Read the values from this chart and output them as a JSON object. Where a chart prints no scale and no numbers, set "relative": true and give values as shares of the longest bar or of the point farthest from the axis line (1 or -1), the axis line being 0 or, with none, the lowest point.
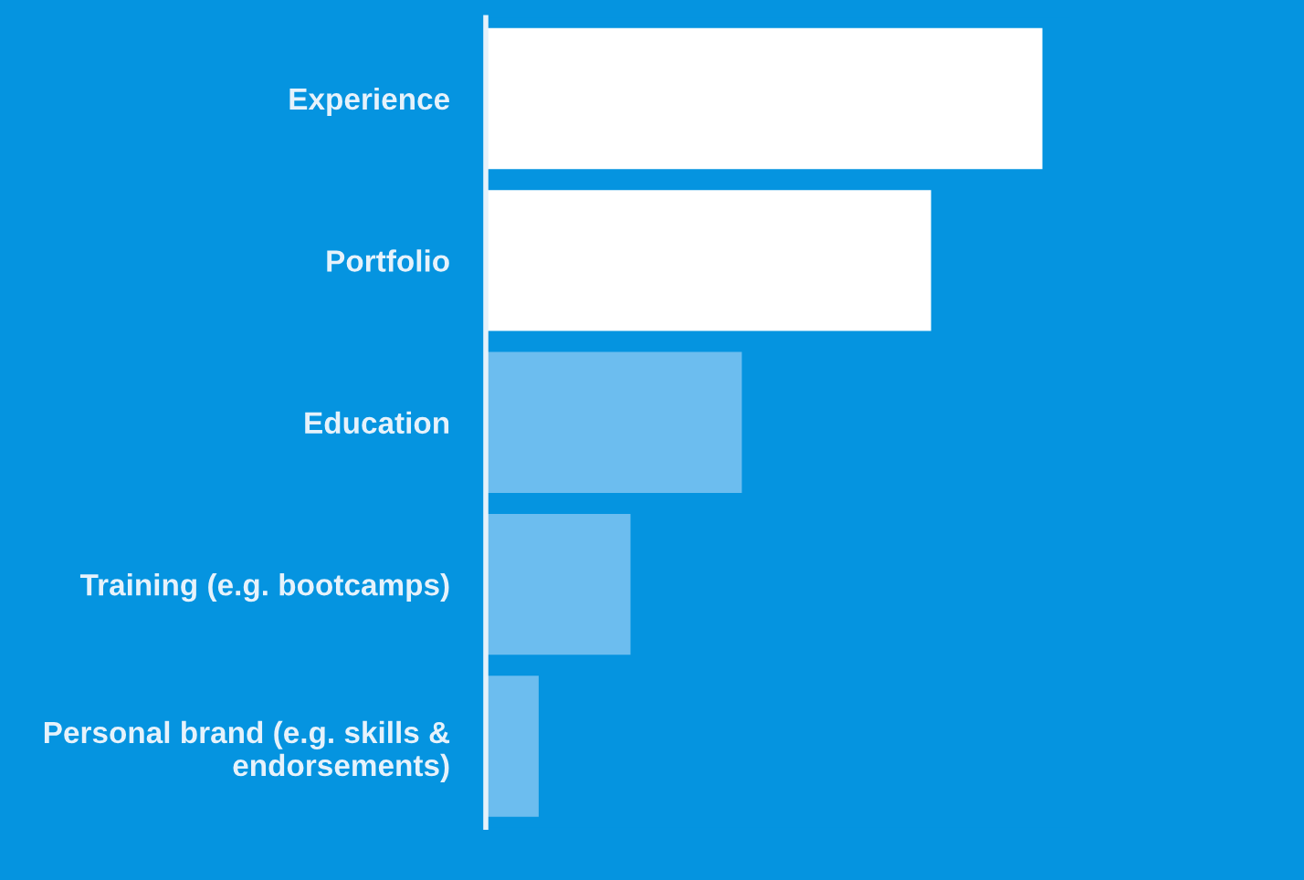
{
  "chart_data": {
    "type": "bar",
    "orientation": "horizontal",
    "relative": true,
    "tick_labels": "y",
    "categories": [
      "Experience",
      "Portfolio",
      "Education",
      "Training (e.g. bootcamps)",
      "Personal brand (e.g. skills &\nendorsements)"
    ],
    "values": [
      1,
      0.8,
      0.46,
      0.26,
      0.095
    ],
    "colors": [
      "#ffffff",
      "#ffffff",
      "#6cbdef",
      "#6cbdef",
      "#6cbdef"
    ]
  }
}
